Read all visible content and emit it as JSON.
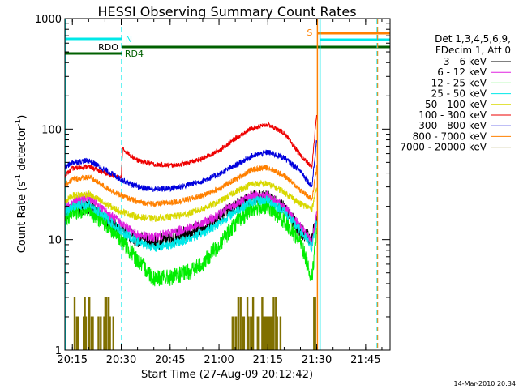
{
  "chart_data": {
    "type": "line",
    "title": "HESSI Observing Summary Count Rates",
    "xlabel": "Start Time (27-Aug-09 20:12:42)",
    "ylabel_main": "Count Rate (s",
    "ylabel_sup1": "-1",
    "ylabel_mid": " detector",
    "ylabel_sup2": "-1",
    "ylabel_end": ")",
    "yscale": "log",
    "ylim": [
      1,
      1000
    ],
    "xlim_minutes": [
      12.7,
      112.5
    ],
    "x_ticks": [
      {
        "t": 15,
        "label": "20:15"
      },
      {
        "t": 30,
        "label": "20:30"
      },
      {
        "t": 45,
        "label": "20:45"
      },
      {
        "t": 60,
        "label": "21:00"
      },
      {
        "t": 75,
        "label": "21:15"
      },
      {
        "t": 90,
        "label": "21:30"
      },
      {
        "t": 105,
        "label": "21:45"
      }
    ],
    "y_ticks": [
      {
        "v": 1,
        "label": "1"
      },
      {
        "v": 10,
        "label": "10"
      },
      {
        "v": 100,
        "label": "100"
      },
      {
        "v": 1000,
        "label": "1000"
      }
    ],
    "legend_header": [
      "Det 1,3,4,5,6,9,",
      "FDecim 1, Att 0"
    ],
    "series": [
      {
        "name": "3 - 6 keV",
        "color": "#000000",
        "x": [
          12.7,
          15,
          20,
          25,
          30,
          35,
          40,
          45,
          50,
          55,
          60,
          65,
          70,
          75,
          80,
          85,
          88.5,
          90
        ],
        "y": [
          17,
          19,
          20,
          15.5,
          12,
          10,
          9.5,
          10,
          11.5,
          13,
          16,
          20,
          24,
          24,
          19,
          12,
          10,
          16
        ]
      },
      {
        "name": "6 - 12 keV",
        "color": "#e020e0",
        "x": [
          12.7,
          15,
          20,
          25,
          30,
          35,
          40,
          45,
          50,
          55,
          60,
          65,
          70,
          75,
          80,
          85,
          88.5,
          90
        ],
        "y": [
          19,
          22,
          24,
          18,
          14,
          11,
          10.5,
          11.5,
          12.5,
          14,
          17,
          21,
          25,
          25,
          20,
          13,
          9.5,
          17
        ]
      },
      {
        "name": "12 - 25 keV",
        "color": "#00ee00",
        "x": [
          12.7,
          15,
          20,
          25,
          30,
          35,
          40,
          45,
          50,
          55,
          60,
          65,
          70,
          75,
          80,
          85,
          88.5,
          90
        ],
        "y": [
          15,
          18,
          18.5,
          14,
          10,
          6.5,
          4.5,
          4.5,
          5,
          6,
          9,
          14,
          19,
          20,
          15,
          9.5,
          4.5,
          12
        ]
      },
      {
        "name": "25 - 50 keV",
        "color": "#00e8e8",
        "x": [
          12.7,
          15,
          20,
          25,
          30,
          35,
          40,
          45,
          50,
          55,
          60,
          65,
          70,
          75,
          80,
          85,
          88.5,
          90
        ],
        "y": [
          17,
          20,
          21,
          16,
          12,
          9.5,
          8.5,
          9,
          10,
          11.5,
          14,
          18,
          22,
          23,
          18,
          12,
          8.5,
          15
        ]
      },
      {
        "name": "50 - 100 keV",
        "color": "#d8d800",
        "x": [
          12.7,
          15,
          20,
          25,
          30,
          35,
          40,
          45,
          50,
          55,
          60,
          65,
          70,
          75,
          80,
          85,
          88.5,
          90
        ],
        "y": [
          22,
          25,
          26,
          21,
          18,
          16,
          15.5,
          16,
          17,
          19,
          22,
          27,
          32,
          32,
          27,
          21,
          19,
          30
        ]
      },
      {
        "name": "100 - 300 keV",
        "color": "#ee0000",
        "x": [
          12.7,
          15,
          20,
          25,
          30,
          30.4,
          35,
          40,
          45,
          50,
          55,
          60,
          65,
          70,
          75,
          80,
          85,
          88.5,
          90
        ],
        "y": [
          38,
          44,
          46,
          40,
          36,
          66,
          52,
          48,
          47,
          49,
          54,
          64,
          82,
          102,
          110,
          92,
          58,
          45,
          140
        ]
      },
      {
        "name": "300 - 800 keV",
        "color": "#0000dd",
        "x": [
          12.7,
          15,
          20,
          25,
          30,
          35,
          40,
          45,
          50,
          55,
          60,
          65,
          70,
          75,
          80,
          85,
          88.5,
          90
        ],
        "y": [
          45,
          50,
          52,
          43,
          35,
          30,
          28.5,
          29,
          31,
          34,
          39,
          47,
          57,
          62,
          55,
          42,
          30,
          80
        ]
      },
      {
        "name": "800 - 7000 keV",
        "color": "#ff8000",
        "x": [
          12.7,
          15,
          20,
          25,
          30,
          35,
          40,
          45,
          50,
          55,
          60,
          65,
          70,
          75,
          80,
          85,
          88.5,
          90
        ],
        "y": [
          31,
          35,
          37,
          30,
          25,
          22,
          21,
          21.5,
          23,
          25,
          29,
          35,
          43,
          45,
          38,
          28,
          23,
          45
        ]
      },
      {
        "name": "7000 - 20000 keV",
        "color": "#807000",
        "x": [],
        "y": []
      }
    ],
    "annotations": {
      "N": "N",
      "RD0": "RDO",
      "RD4": "RD4",
      "S": "S"
    },
    "footer": "14-Mar-2010 20:34"
  }
}
